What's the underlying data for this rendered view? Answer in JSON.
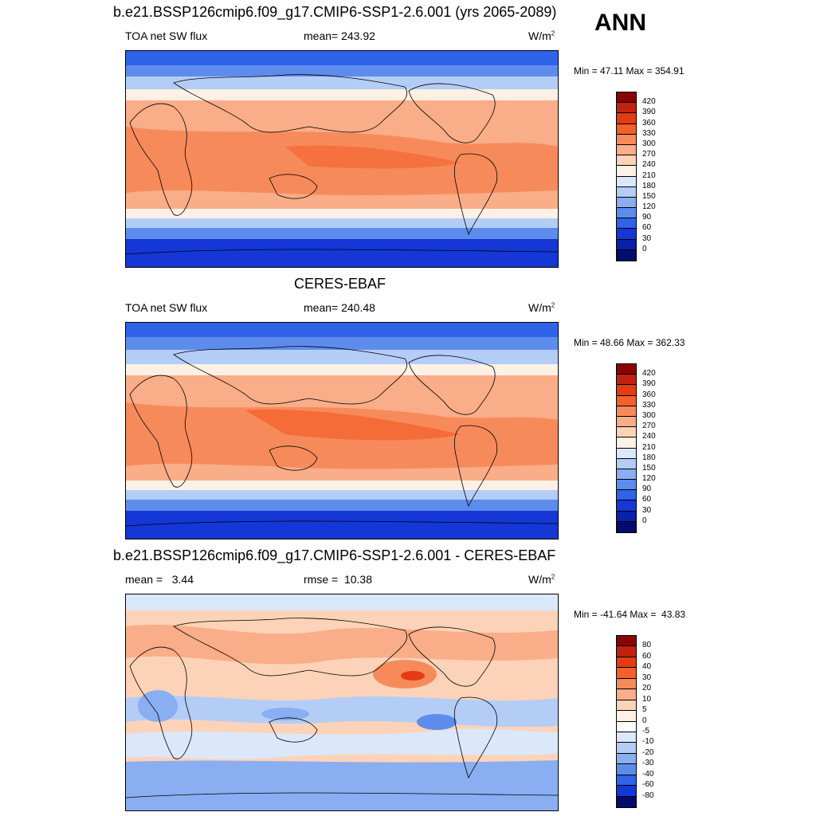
{
  "season": "ANN",
  "panels": [
    {
      "title": "b.e21.BSSP126cmip6.f09_g17.CMIP6-SSP1-2.6.001 (yrs 2065-2089)",
      "left_label": "TOA net SW flux",
      "center_label": "mean= 243.92",
      "units_label": "W/m",
      "units_sup": "2",
      "minmax": "Min =  47.11 Max = 354.91",
      "colorbar_labels": [
        "420",
        "390",
        "360",
        "330",
        "300",
        "270",
        "240",
        "210",
        "180",
        "150",
        "120",
        "90",
        "60",
        "30",
        "0"
      ]
    },
    {
      "title": "CERES-EBAF",
      "left_label": "TOA net SW flux",
      "center_label": "mean= 240.48",
      "units_label": "W/m",
      "units_sup": "2",
      "minmax": "Min =  48.66 Max = 362.33",
      "colorbar_labels": [
        "420",
        "390",
        "360",
        "330",
        "300",
        "270",
        "240",
        "210",
        "180",
        "150",
        "120",
        "90",
        "60",
        "30",
        "0"
      ]
    },
    {
      "title": "b.e21.BSSP126cmip6.f09_g17.CMIP6-SSP1-2.6.001 - CERES-EBAF",
      "left_label": "mean =   3.44",
      "center_label": "rmse =  10.38",
      "units_label": "W/m",
      "units_sup": "2",
      "minmax": "Min = -41.64 Max =  43.83",
      "colorbar_labels": [
        "80",
        "60",
        "40",
        "30",
        "20",
        "10",
        "5",
        "0",
        "-5",
        "-10",
        "-20",
        "-30",
        "-40",
        "-60",
        "-80"
      ]
    }
  ],
  "colors": {
    "flux_scale": [
      "#8b0000",
      "#c1220f",
      "#e53b12",
      "#f4602a",
      "#f78a5b",
      "#f9ad88",
      "#fcd3b8",
      "#fdf0e4",
      "#dbe8fb",
      "#b4cdf7",
      "#8aaef2",
      "#5e8ced",
      "#2f63e8",
      "#1437d6",
      "#0a20a8",
      "#020c6e"
    ],
    "diff_scale": [
      "#8b0000",
      "#c1220f",
      "#e53b12",
      "#f4602a",
      "#f78a5b",
      "#f9ad88",
      "#fcd3b8",
      "#fdf0e4",
      "#ffffff",
      "#dbe8fb",
      "#b4cdf7",
      "#8aaef2",
      "#5e8ced",
      "#2f63e8",
      "#1437d6",
      "#020c6e"
    ]
  }
}
